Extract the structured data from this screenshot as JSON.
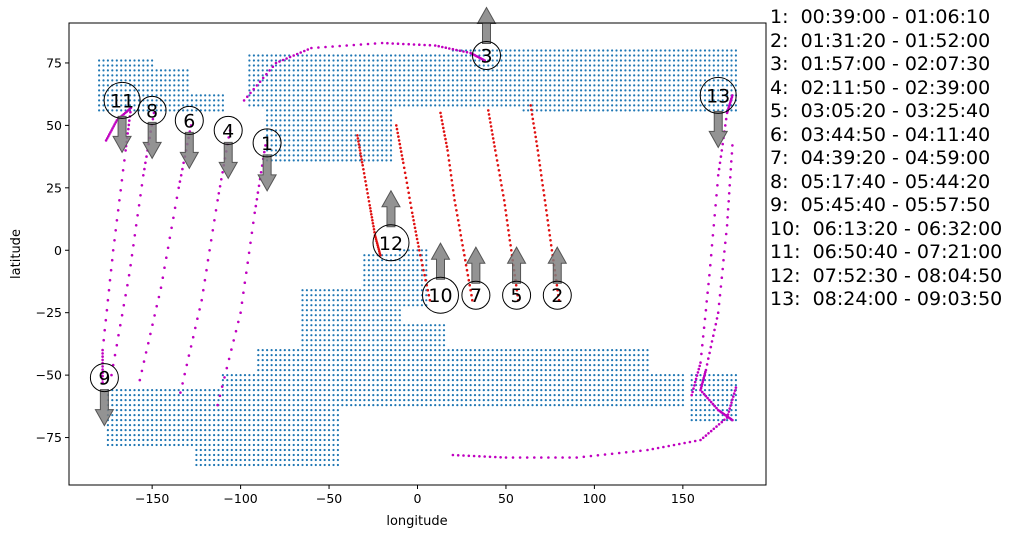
{
  "chart_data": {
    "type": "scatter",
    "xlabel": "longitude",
    "ylabel": "latitude",
    "xlim": [
      -197,
      197
    ],
    "ylim": [
      -94,
      91
    ],
    "xticks": [
      -150,
      -100,
      -50,
      0,
      50,
      100,
      150
    ],
    "yticks": [
      75,
      50,
      25,
      0,
      -25,
      -50,
      -75
    ],
    "grid": false,
    "colors": {
      "coverage": "#1f77b4",
      "track_night": "#c000c0",
      "track_day": "#e01010",
      "arrow": "#808080"
    },
    "legend": [
      "1:  00:39:00 - 01:06:10",
      "2:  01:31:20 - 01:52:00",
      "3:  01:57:00 - 02:07:30",
      "4:  02:11:50 - 02:39:00",
      "5:  03:05:20 - 03:25:40",
      "6:  03:44:50 - 04:11:40",
      "7:  04:39:20 - 04:59:00",
      "8:  05:17:40 - 05:44:20",
      "9:  05:45:40 - 05:57:50",
      "10:  06:13:20 - 06:32:00",
      "11:  06:50:40 - 07:21:00",
      "12:  07:52:30 - 08:04:50",
      "13:  08:24:00 - 09:03:50"
    ],
    "coverage_bands": [
      {
        "lat": [
          72,
          77
        ],
        "lon": [
          -180,
          -150
        ]
      },
      {
        "lat": [
          62,
          72
        ],
        "lon": [
          -180,
          -130
        ]
      },
      {
        "lat": [
          55,
          62
        ],
        "lon": [
          -180,
          -110
        ]
      },
      {
        "lat": [
          58,
          78
        ],
        "lon": [
          -95,
          20
        ]
      },
      {
        "lat": [
          35,
          78
        ],
        "lon": [
          -85,
          -15
        ]
      },
      {
        "lat": [
          58,
          80
        ],
        "lon": [
          20,
          180
        ]
      },
      {
        "lat": [
          55,
          80
        ],
        "lon": [
          60,
          180
        ]
      },
      {
        "lat": [
          -22,
          0
        ],
        "lon": [
          -10,
          5
        ]
      },
      {
        "lat": [
          -25,
          -2
        ],
        "lon": [
          -30,
          -10
        ]
      },
      {
        "lat": [
          -40,
          -15
        ],
        "lon": [
          -65,
          -10
        ]
      },
      {
        "lat": [
          -40,
          -30
        ],
        "lon": [
          -10,
          15
        ]
      },
      {
        "lat": [
          -45,
          -42
        ],
        "lon": [
          -20,
          125
        ]
      },
      {
        "lat": [
          -55,
          -40
        ],
        "lon": [
          -90,
          130
        ]
      },
      {
        "lat": [
          -62,
          -50
        ],
        "lon": [
          -110,
          150
        ]
      },
      {
        "lat": [
          -78,
          -55
        ],
        "lon": [
          -175,
          -90
        ]
      },
      {
        "lat": [
          -87,
          -60
        ],
        "lon": [
          -125,
          -45
        ]
      },
      {
        "lat": [
          -68,
          -50
        ],
        "lon": [
          155,
          180
        ]
      }
    ],
    "tracks": [
      {
        "id": "1",
        "color": "#c000c0",
        "points": [
          [
            -113,
            -62
          ],
          [
            -100,
            -25
          ],
          [
            -92,
            15
          ],
          [
            -86,
            42
          ]
        ]
      },
      {
        "id": "4",
        "color": "#c000c0",
        "points": [
          [
            -134,
            -57
          ],
          [
            -122,
            -20
          ],
          [
            -113,
            20
          ],
          [
            -106,
            48
          ]
        ]
      },
      {
        "id": "6",
        "color": "#c000c0",
        "points": [
          [
            -157,
            -52
          ],
          [
            -145,
            -15
          ],
          [
            -135,
            25
          ],
          [
            -128,
            50
          ]
        ]
      },
      {
        "id": "8",
        "color": "#c000c0",
        "points": [
          [
            -173,
            -50
          ],
          [
            -163,
            -10
          ],
          [
            -155,
            30
          ],
          [
            -149,
            55
          ]
        ]
      },
      {
        "id": "11",
        "color": "#c000c0",
        "points": [
          [
            -178,
            -53
          ],
          [
            -178,
            -40
          ],
          [
            -172,
            0
          ],
          [
            -165,
            40
          ],
          [
            -162,
            57
          ],
          [
            -170,
            52
          ],
          [
            -176,
            44
          ]
        ]
      },
      {
        "id": "3",
        "color": "#c000c0",
        "points": [
          [
            -98,
            60
          ],
          [
            -80,
            75
          ],
          [
            -60,
            81
          ],
          [
            -20,
            83
          ],
          [
            10,
            82
          ],
          [
            30,
            79
          ],
          [
            38,
            76
          ]
        ]
      },
      {
        "id": "13",
        "color": "#c000c0",
        "points": [
          [
            155,
            -58
          ],
          [
            160,
            -45
          ],
          [
            165,
            -10
          ],
          [
            170,
            30
          ],
          [
            175,
            55
          ],
          [
            178,
            62
          ]
        ]
      },
      {
        "id": "9",
        "color": "#c000c0",
        "points": [
          [
            180,
            -55
          ],
          [
            175,
            -67
          ],
          [
            160,
            -76
          ],
          [
            130,
            -80
          ],
          [
            90,
            -83
          ],
          [
            50,
            -83
          ],
          [
            20,
            -82
          ]
        ]
      },
      {
        "id": "9b",
        "color": "#c000c0",
        "points": [
          [
            178,
            42
          ],
          [
            175,
            10
          ],
          [
            170,
            -25
          ],
          [
            163,
            -48
          ],
          [
            160,
            -56
          ],
          [
            170,
            -64
          ],
          [
            178,
            -68
          ]
        ]
      },
      {
        "id": "2",
        "color": "#e01010",
        "points": [
          [
            64,
            58
          ],
          [
            68,
            40
          ],
          [
            72,
            20
          ],
          [
            76,
            0
          ],
          [
            80,
            -20
          ]
        ]
      },
      {
        "id": "5",
        "color": "#e01010",
        "points": [
          [
            40,
            56
          ],
          [
            44,
            40
          ],
          [
            49,
            20
          ],
          [
            53,
            0
          ],
          [
            57,
            -20
          ]
        ]
      },
      {
        "id": "7",
        "color": "#e01010",
        "points": [
          [
            13,
            55
          ],
          [
            17,
            40
          ],
          [
            21,
            20
          ],
          [
            26,
            0
          ],
          [
            31,
            -20
          ]
        ]
      },
      {
        "id": "10",
        "color": "#e01010",
        "points": [
          [
            -12,
            50
          ],
          [
            -8,
            35
          ],
          [
            -3,
            15
          ],
          [
            1,
            0
          ],
          [
            7,
            -20
          ]
        ]
      },
      {
        "id": "12",
        "color": "#e01010",
        "points": [
          [
            -34,
            46
          ],
          [
            -31,
            34
          ],
          [
            -27,
            18
          ],
          [
            -24,
            6
          ],
          [
            -21,
            -2
          ]
        ]
      }
    ],
    "annotations": [
      {
        "label": "1",
        "lon": -85,
        "lat": 43,
        "arrow": "down"
      },
      {
        "label": "2",
        "lon": 79,
        "lat": -18,
        "arrow": "up"
      },
      {
        "label": "3",
        "lon": 39,
        "lat": 78,
        "arrow": "up"
      },
      {
        "label": "4",
        "lon": -107,
        "lat": 48,
        "arrow": "down"
      },
      {
        "label": "5",
        "lon": 56,
        "lat": -18,
        "arrow": "up"
      },
      {
        "label": "6",
        "lon": -129,
        "lat": 52,
        "arrow": "down"
      },
      {
        "label": "7",
        "lon": 33,
        "lat": -18,
        "arrow": "up"
      },
      {
        "label": "8",
        "lon": -150,
        "lat": 56,
        "arrow": "down"
      },
      {
        "label": "9",
        "lon": -177,
        "lat": -51,
        "arrow": "down"
      },
      {
        "label": "10",
        "lon": 13,
        "lat": -18,
        "arrow": "up"
      },
      {
        "label": "11",
        "lon": -167,
        "lat": 60,
        "arrow": "down"
      },
      {
        "label": "12",
        "lon": -15,
        "lat": 3,
        "arrow": "up"
      },
      {
        "label": "13",
        "lon": 170,
        "lat": 62,
        "arrow": "down"
      }
    ]
  }
}
